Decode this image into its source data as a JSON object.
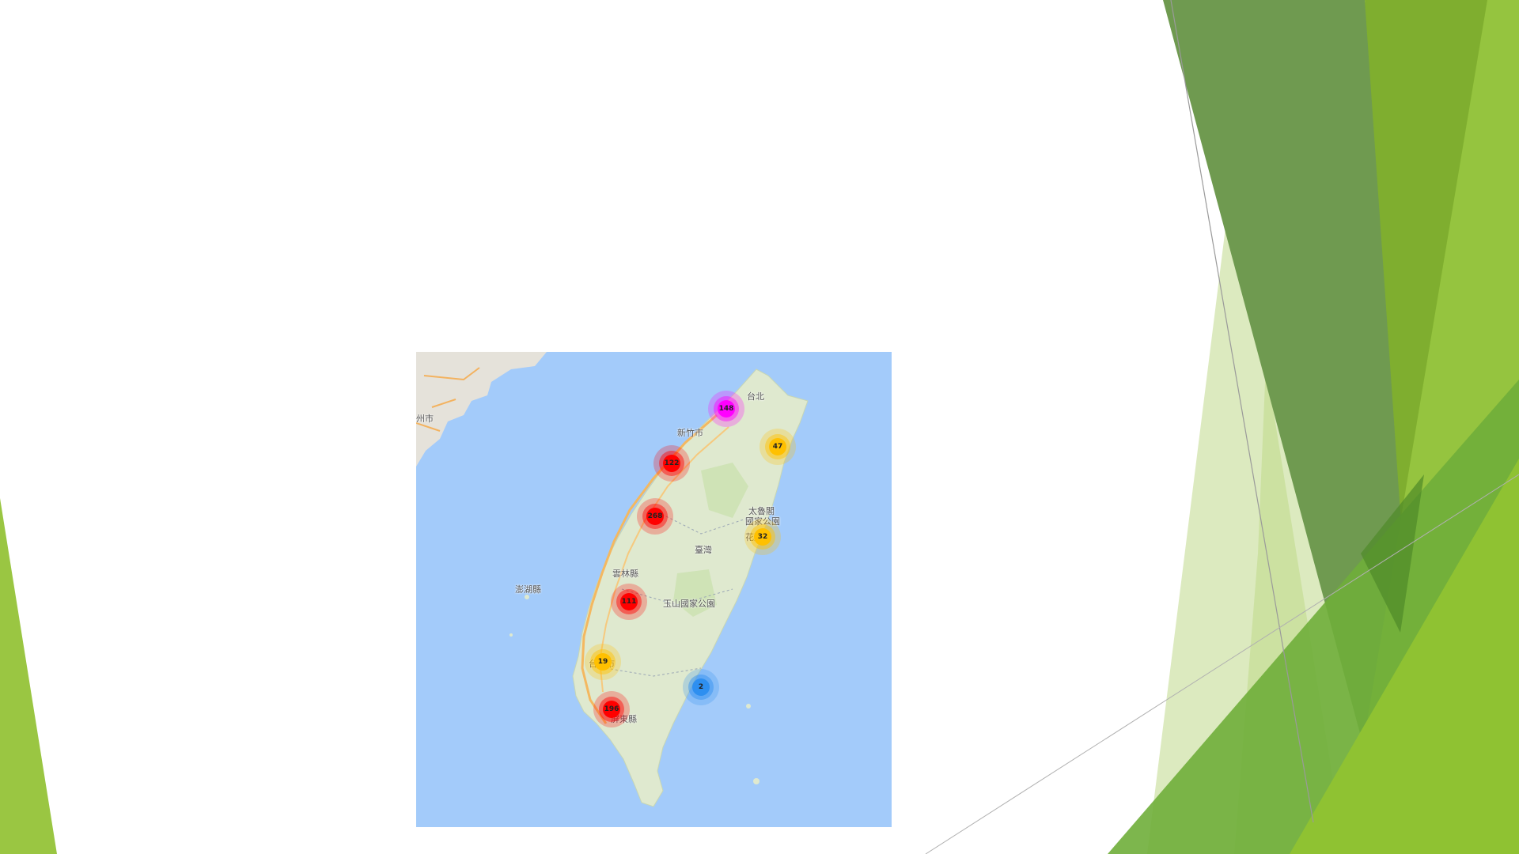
{
  "theme": {
    "accent_light": "#9ac642",
    "accent_dark": "#5e8c3a",
    "accent_pale": "#dceabf",
    "map_water": "#a3cbfa",
    "map_land": "#dfe9cf"
  },
  "map": {
    "labels": {
      "taipei": "台北",
      "hsinchu": "新竹市",
      "fuzhou": "州市",
      "taroko_1": "太魯閣",
      "taroko_2": "國家公園",
      "hualien": "花蓮",
      "taiwan": "臺灣",
      "yunlin": "雲林縣",
      "penghu": "澎湖縣",
      "yushan": "玉山國家公園",
      "tainan": "台南市",
      "pingtung": "屏東縣"
    },
    "clusters": [
      {
        "id": "taipei",
        "count": "148",
        "color": "#ff00ff"
      },
      {
        "id": "yilan",
        "count": "47",
        "color": "#ffc000"
      },
      {
        "id": "miaoli",
        "count": "122",
        "color": "#ff0000"
      },
      {
        "id": "taichung",
        "count": "268",
        "color": "#ff0000"
      },
      {
        "id": "hualien",
        "count": "32",
        "color": "#ffc000"
      },
      {
        "id": "chiayi",
        "count": "111",
        "color": "#ff0000"
      },
      {
        "id": "tainan",
        "count": "19",
        "color": "#ffc000"
      },
      {
        "id": "taitung",
        "count": "2",
        "color": "#2e8ff0"
      },
      {
        "id": "kaohsiung",
        "count": "196",
        "color": "#ff0000"
      }
    ]
  }
}
